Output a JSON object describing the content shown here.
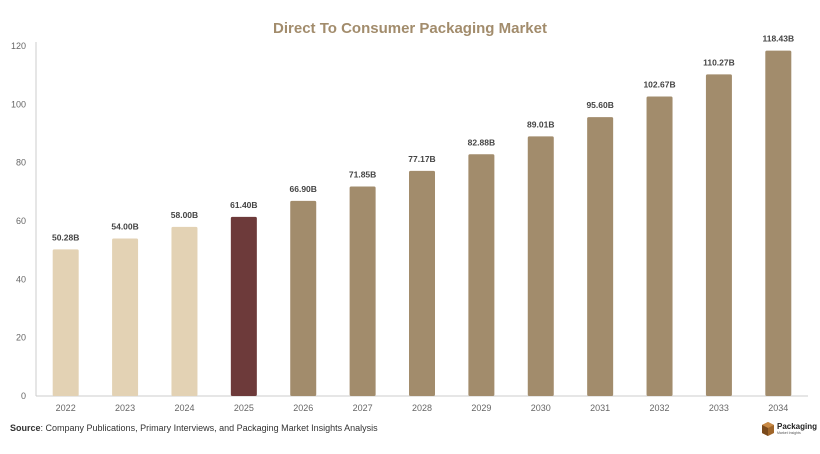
{
  "chart_data": {
    "type": "bar",
    "title": "Direct To Consumer Packaging Market",
    "categories": [
      "2022",
      "2023",
      "2024",
      "2025",
      "2026",
      "2027",
      "2028",
      "2029",
      "2030",
      "2031",
      "2032",
      "2033",
      "2034"
    ],
    "values": [
      50.28,
      54.0,
      58.0,
      61.4,
      66.9,
      71.85,
      77.17,
      82.88,
      89.01,
      95.6,
      102.67,
      110.27,
      118.43
    ],
    "data_labels": [
      "50.28B",
      "54.00B",
      "58.00B",
      "61.40B",
      "66.90B",
      "71.85B",
      "77.17B",
      "82.88B",
      "89.01B",
      "95.60B",
      "102.67B",
      "110.27B",
      "118.43B"
    ],
    "bar_colors": [
      "#e3d2b4",
      "#e3d2b4",
      "#e3d2b4",
      "#6d3a3a",
      "#a28c6c",
      "#a28c6c",
      "#a28c6c",
      "#a28c6c",
      "#a28c6c",
      "#a28c6c",
      "#a28c6c",
      "#a28c6c",
      "#a28c6c"
    ],
    "xlabel": "",
    "ylabel": "",
    "ylim": [
      0,
      120
    ],
    "yticks": [
      0,
      20,
      40,
      60,
      80,
      100,
      120
    ],
    "grid": false,
    "legend": "none"
  },
  "source": {
    "label": "Source",
    "text": ": Company Publications, Primary Interviews, and Packaging Market Insights Analysis"
  },
  "brand": {
    "name": "Packaging",
    "tagline": "Market Insights",
    "icon": "package-box-icon",
    "color": "#a0662a"
  },
  "colors": {
    "title": "#a28c6c",
    "axis": "#cccccc"
  }
}
